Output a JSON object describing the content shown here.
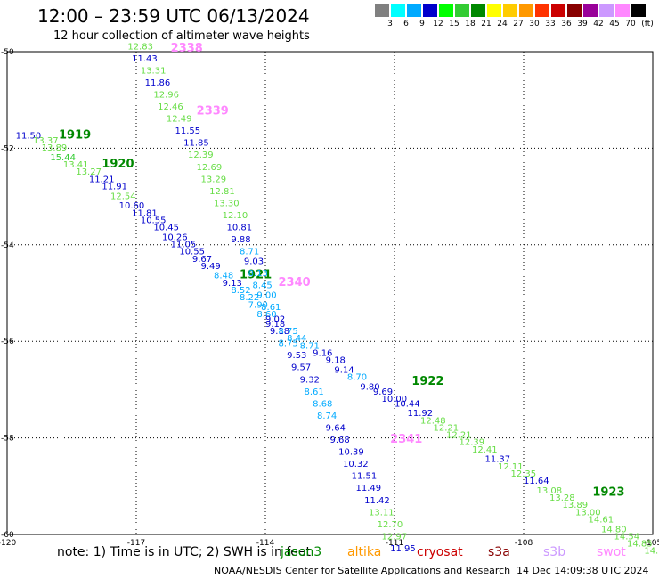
{
  "header": {
    "title": "12:00 – 23:59 UTC 06/13/2024",
    "subtitle": "12 hour collection of altimeter wave heights"
  },
  "colorbar": {
    "unit": "(ft)",
    "items": [
      {
        "label": "3",
        "color": "#808080"
      },
      {
        "label": "6",
        "color": "#00ffff"
      },
      {
        "label": "9",
        "color": "#00aaff"
      },
      {
        "label": "12",
        "color": "#0000cc"
      },
      {
        "label": "15",
        "color": "#00ff00"
      },
      {
        "label": "18",
        "color": "#33cc33"
      },
      {
        "label": "21",
        "color": "#008800"
      },
      {
        "label": "24",
        "color": "#ffff00"
      },
      {
        "label": "27",
        "color": "#ffcc00"
      },
      {
        "label": "30",
        "color": "#ff9900"
      },
      {
        "label": "33",
        "color": "#ff3300"
      },
      {
        "label": "36",
        "color": "#cc0000"
      },
      {
        "label": "39",
        "color": "#880000"
      },
      {
        "label": "42",
        "color": "#990099"
      },
      {
        "label": "45",
        "color": "#cc99ff"
      },
      {
        "label": "70",
        "color": "#ff88ff"
      },
      {
        "label": "",
        "color": "#000000"
      }
    ]
  },
  "footer": {
    "note": "note: 1) Time is in UTC; 2) SWH is in feet",
    "satellites": [
      {
        "name": "jason3",
        "color": "#008800"
      },
      {
        "name": "altika",
        "color": "#ff9900"
      },
      {
        "name": "cryosat",
        "color": "#cc0000"
      },
      {
        "name": "s3a",
        "color": "#880000"
      },
      {
        "name": "s3b",
        "color": "#cc99ff"
      },
      {
        "name": "swot",
        "color": "#ff88ff"
      }
    ],
    "credit": "NOAA/NESDIS Center for Satellite Applications and Research",
    "timestamp": "14 Dec 14:09:38 UTC 2024"
  },
  "chart_data": {
    "type": "scatter",
    "title": "12:00 – 23:59 UTC 06/13/2024",
    "xlim": [
      -120,
      -105
    ],
    "ylim": [
      -60,
      -50
    ],
    "x_ticks": [
      "-120",
      "-117",
      "-114",
      "-111",
      "-108",
      "-105"
    ],
    "y_ticks": [
      "-50",
      "-52",
      "-54",
      "-56",
      "-58",
      "-60"
    ],
    "grid": true,
    "series": [
      {
        "name": "jason3",
        "color": "#008800",
        "pass_labels": [
          {
            "text": "1919",
            "x": -118.8,
            "y": -51.8
          },
          {
            "text": "1920",
            "x": -117.8,
            "y": -52.4
          },
          {
            "text": "1921",
            "x": -114.6,
            "y": -54.7
          },
          {
            "text": "1922",
            "x": -110.6,
            "y": -56.9
          },
          {
            "text": "1923",
            "x": -106.4,
            "y": -59.2
          }
        ],
        "points": [
          {
            "x": -119.8,
            "y": -51.8,
            "v": "11.50",
            "c": "#0000cc"
          },
          {
            "x": -119.4,
            "y": -51.9,
            "v": "13.37",
            "c": "#66dd44"
          },
          {
            "x": -119.2,
            "y": -52.05,
            "v": "13.89",
            "c": "#66dd44"
          },
          {
            "x": -119.0,
            "y": -52.25,
            "v": "15.44",
            "c": "#33cc33"
          },
          {
            "x": -118.7,
            "y": -52.4,
            "v": "13.41",
            "c": "#66dd44"
          },
          {
            "x": -118.4,
            "y": -52.55,
            "v": "13.27",
            "c": "#66dd44"
          },
          {
            "x": -118.1,
            "y": -52.7,
            "v": "11.21",
            "c": "#0000cc"
          },
          {
            "x": -117.8,
            "y": -52.85,
            "v": "11.91",
            "c": "#0000cc"
          },
          {
            "x": -117.6,
            "y": -53.05,
            "v": "12.54",
            "c": "#66dd44"
          },
          {
            "x": -117.4,
            "y": -53.25,
            "v": "10.60",
            "c": "#0000cc"
          },
          {
            "x": -117.1,
            "y": -53.4,
            "v": "11.81",
            "c": "#0000cc"
          },
          {
            "x": -116.9,
            "y": -53.55,
            "v": "10.55",
            "c": "#0000cc"
          },
          {
            "x": -116.6,
            "y": -53.7,
            "v": "10.45",
            "c": "#0000cc"
          },
          {
            "x": -116.4,
            "y": -53.9,
            "v": "10.26",
            "c": "#0000cc"
          },
          {
            "x": -116.2,
            "y": -54.05,
            "v": "11.05",
            "c": "#0000cc"
          },
          {
            "x": -116.0,
            "y": -54.2,
            "v": "10.55",
            "c": "#0000cc"
          },
          {
            "x": -115.7,
            "y": -54.35,
            "v": "9.67",
            "c": "#0000cc"
          },
          {
            "x": -115.5,
            "y": -54.5,
            "v": "9.49",
            "c": "#0000cc"
          },
          {
            "x": -115.2,
            "y": -54.7,
            "v": "8.48",
            "c": "#00aaff"
          },
          {
            "x": -115.0,
            "y": -54.85,
            "v": "9.13",
            "c": "#0000cc"
          },
          {
            "x": -114.8,
            "y": -55.0,
            "v": "8.52",
            "c": "#00aaff"
          },
          {
            "x": -114.6,
            "y": -55.15,
            "v": "8.22",
            "c": "#00aaff"
          },
          {
            "x": -114.4,
            "y": -55.3,
            "v": "7.90",
            "c": "#00aaff"
          },
          {
            "x": -114.2,
            "y": -55.5,
            "v": "8.60",
            "c": "#00aaff"
          },
          {
            "x": -114.0,
            "y": -55.7,
            "v": "9.18",
            "c": "#0000cc"
          },
          {
            "x": -113.7,
            "y": -55.85,
            "v": "8.75",
            "c": "#00aaff"
          },
          {
            "x": -113.5,
            "y": -56.0,
            "v": "8.44",
            "c": "#00aaff"
          },
          {
            "x": -113.2,
            "y": -56.15,
            "v": "8.71",
            "c": "#00aaff"
          },
          {
            "x": -112.9,
            "y": -56.3,
            "v": "9.16",
            "c": "#0000cc"
          },
          {
            "x": -112.6,
            "y": -56.45,
            "v": "9.18",
            "c": "#0000cc"
          },
          {
            "x": -112.4,
            "y": -56.65,
            "v": "9.14",
            "c": "#0000cc"
          },
          {
            "x": -112.1,
            "y": -56.8,
            "v": "8.70",
            "c": "#00aaff"
          },
          {
            "x": -111.8,
            "y": -57.0,
            "v": "9.80",
            "c": "#0000cc"
          },
          {
            "x": -111.5,
            "y": -57.1,
            "v": "9.69",
            "c": "#0000cc"
          },
          {
            "x": -111.3,
            "y": -57.25,
            "v": "10.00",
            "c": "#0000cc"
          },
          {
            "x": -111.0,
            "y": -57.35,
            "v": "10.44",
            "c": "#0000cc"
          },
          {
            "x": -110.7,
            "y": -57.55,
            "v": "11.92",
            "c": "#0000cc"
          },
          {
            "x": -110.4,
            "y": -57.7,
            "v": "12.48",
            "c": "#66dd44"
          },
          {
            "x": -110.1,
            "y": -57.85,
            "v": "12.21",
            "c": "#66dd44"
          },
          {
            "x": -109.8,
            "y": -58.0,
            "v": "12.21",
            "c": "#66dd44"
          },
          {
            "x": -109.5,
            "y": -58.15,
            "v": "12.39",
            "c": "#66dd44"
          },
          {
            "x": -109.2,
            "y": -58.3,
            "v": "12.41",
            "c": "#66dd44"
          },
          {
            "x": -108.9,
            "y": -58.5,
            "v": "11.37",
            "c": "#0000cc"
          },
          {
            "x": -108.6,
            "y": -58.65,
            "v": "12.11",
            "c": "#66dd44"
          },
          {
            "x": -108.3,
            "y": -58.8,
            "v": "12.35",
            "c": "#66dd44"
          },
          {
            "x": -108.0,
            "y": -58.95,
            "v": "11.64",
            "c": "#0000cc"
          },
          {
            "x": -107.7,
            "y": -59.15,
            "v": "13.08",
            "c": "#66dd44"
          },
          {
            "x": -107.4,
            "y": -59.3,
            "v": "13.28",
            "c": "#66dd44"
          },
          {
            "x": -107.1,
            "y": -59.45,
            "v": "13.89",
            "c": "#66dd44"
          },
          {
            "x": -106.8,
            "y": -59.6,
            "v": "13.00",
            "c": "#66dd44"
          },
          {
            "x": -106.5,
            "y": -59.75,
            "v": "14.61",
            "c": "#66dd44"
          },
          {
            "x": -106.2,
            "y": -59.95,
            "v": "14.80",
            "c": "#66dd44"
          },
          {
            "x": -105.9,
            "y": -60.1,
            "v": "14.54",
            "c": "#66dd44"
          },
          {
            "x": -105.6,
            "y": -60.25,
            "v": "14.85",
            "c": "#66dd44"
          },
          {
            "x": -105.2,
            "y": -60.4,
            "v": "14.7",
            "c": "#66dd44"
          }
        ]
      },
      {
        "name": "swot",
        "color": "#ff88ff",
        "pass_labels": [
          {
            "text": "2338",
            "x": -116.2,
            "y": -50.0
          },
          {
            "text": "2339",
            "x": -115.6,
            "y": -51.3
          },
          {
            "text": "2340",
            "x": -113.7,
            "y": -54.85
          },
          {
            "text": "2341",
            "x": -111.1,
            "y": -58.1
          }
        ],
        "points": [
          {
            "x": -117.2,
            "y": -49.95,
            "v": "12.83",
            "c": "#66dd44"
          },
          {
            "x": -117.1,
            "y": -50.2,
            "v": "11.43",
            "c": "#0000cc"
          },
          {
            "x": -116.9,
            "y": -50.45,
            "v": "13.31",
            "c": "#66dd44"
          },
          {
            "x": -116.8,
            "y": -50.7,
            "v": "11.86",
            "c": "#0000cc"
          },
          {
            "x": -116.6,
            "y": -50.95,
            "v": "12.96",
            "c": "#66dd44"
          },
          {
            "x": -116.5,
            "y": -51.2,
            "v": "12.46",
            "c": "#66dd44"
          },
          {
            "x": -116.3,
            "y": -51.45,
            "v": "12.49",
            "c": "#66dd44"
          },
          {
            "x": -116.1,
            "y": -51.7,
            "v": "11.55",
            "c": "#0000cc"
          },
          {
            "x": -115.9,
            "y": -51.95,
            "v": "11.85",
            "c": "#0000cc"
          },
          {
            "x": -115.8,
            "y": -52.2,
            "v": "12.39",
            "c": "#66dd44"
          },
          {
            "x": -115.6,
            "y": -52.45,
            "v": "12.69",
            "c": "#66dd44"
          },
          {
            "x": -115.5,
            "y": -52.7,
            "v": "13.29",
            "c": "#66dd44"
          },
          {
            "x": -115.3,
            "y": -52.95,
            "v": "12.81",
            "c": "#66dd44"
          },
          {
            "x": -115.2,
            "y": -53.2,
            "v": "13.30",
            "c": "#66dd44"
          },
          {
            "x": -115.0,
            "y": -53.45,
            "v": "12.10",
            "c": "#66dd44"
          },
          {
            "x": -114.9,
            "y": -53.7,
            "v": "10.81",
            "c": "#0000cc"
          },
          {
            "x": -114.8,
            "y": -53.95,
            "v": "9.88",
            "c": "#0000cc"
          },
          {
            "x": -114.6,
            "y": -54.2,
            "v": "8.71",
            "c": "#00aaff"
          },
          {
            "x": -114.5,
            "y": -54.4,
            "v": "9.03",
            "c": "#0000cc"
          },
          {
            "x": -114.4,
            "y": -54.65,
            "v": "8.13",
            "c": "#00aaff"
          },
          {
            "x": -114.3,
            "y": -54.9,
            "v": "8.45",
            "c": "#00aaff"
          },
          {
            "x": -114.2,
            "y": -55.1,
            "v": "9.00",
            "c": "#00aaff"
          },
          {
            "x": -114.1,
            "y": -55.35,
            "v": "8.61",
            "c": "#00aaff"
          },
          {
            "x": -114.0,
            "y": -55.6,
            "v": "9.02",
            "c": "#0000cc"
          },
          {
            "x": -113.9,
            "y": -55.85,
            "v": "9.18",
            "c": "#0000cc"
          },
          {
            "x": -113.7,
            "y": -56.1,
            "v": "8.75",
            "c": "#00aaff"
          },
          {
            "x": -113.5,
            "y": -56.35,
            "v": "9.53",
            "c": "#0000cc"
          },
          {
            "x": -113.4,
            "y": -56.6,
            "v": "9.57",
            "c": "#0000cc"
          },
          {
            "x": -113.2,
            "y": -56.85,
            "v": "9.32",
            "c": "#0000cc"
          },
          {
            "x": -113.1,
            "y": -57.1,
            "v": "8.61",
            "c": "#00aaff"
          },
          {
            "x": -112.9,
            "y": -57.35,
            "v": "8.68",
            "c": "#00aaff"
          },
          {
            "x": -112.8,
            "y": -57.6,
            "v": "8.74",
            "c": "#00aaff"
          },
          {
            "x": -112.6,
            "y": -57.85,
            "v": "9.64",
            "c": "#0000cc"
          },
          {
            "x": -112.5,
            "y": -58.1,
            "v": "9.68",
            "c": "#0000cc"
          },
          {
            "x": -112.3,
            "y": -58.35,
            "v": "10.39",
            "c": "#0000cc"
          },
          {
            "x": -112.2,
            "y": -58.6,
            "v": "10.32",
            "c": "#0000cc"
          },
          {
            "x": -112.0,
            "y": -58.85,
            "v": "11.51",
            "c": "#0000cc"
          },
          {
            "x": -111.9,
            "y": -59.1,
            "v": "11.49",
            "c": "#0000cc"
          },
          {
            "x": -111.7,
            "y": -59.35,
            "v": "11.42",
            "c": "#0000cc"
          },
          {
            "x": -111.6,
            "y": -59.6,
            "v": "13.11",
            "c": "#66dd44"
          },
          {
            "x": -111.4,
            "y": -59.85,
            "v": "12.70",
            "c": "#66dd44"
          },
          {
            "x": -111.3,
            "y": -60.1,
            "v": "12.97",
            "c": "#66dd44"
          },
          {
            "x": -111.1,
            "y": -60.35,
            "v": "11.95",
            "c": "#0000cc"
          }
        ]
      }
    ]
  }
}
